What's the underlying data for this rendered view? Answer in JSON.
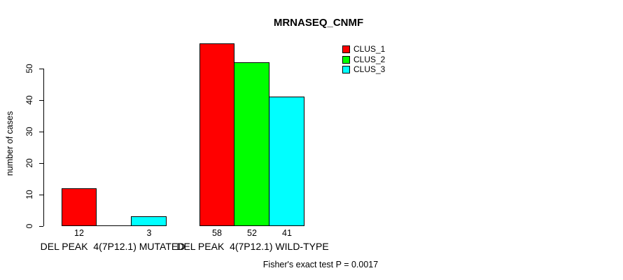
{
  "chart_data": {
    "type": "bar",
    "title": "MRNASEQ_CNMF",
    "xlabel": "",
    "ylabel": "number of cases",
    "ylim": [
      0,
      58
    ],
    "yticks": [
      0,
      10,
      20,
      30,
      40,
      50
    ],
    "grid": false,
    "legend_position": "top-right",
    "categories": [
      "DEL PEAK  4(7P12.1) MUTATED",
      "DEL PEAK  4(7P12.1) WILD-TYPE"
    ],
    "series": [
      {
        "name": "CLUS_1",
        "color": "#ff0000",
        "values": [
          12,
          58
        ],
        "value_labels": [
          "12",
          "58"
        ]
      },
      {
        "name": "CLUS_2",
        "color": "#00ff00",
        "values": [
          0,
          52
        ],
        "value_labels": [
          "",
          "52"
        ]
      },
      {
        "name": "CLUS_3",
        "color": "#00ffff",
        "values": [
          3,
          41
        ],
        "value_labels": [
          "3",
          "41"
        ]
      }
    ],
    "annotation": "Fisher's exact test P = 0.0017",
    "axis_color": "#000000",
    "text_color": "#000000",
    "background_color": "#ffffff"
  }
}
